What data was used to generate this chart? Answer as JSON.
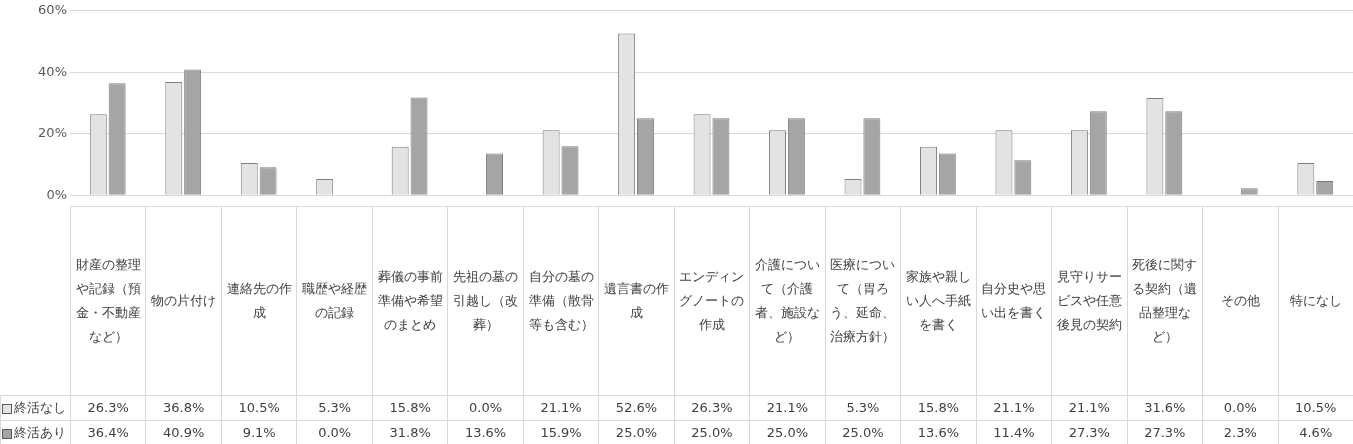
{
  "chart_data": {
    "type": "bar",
    "categories": [
      "財産の整理や記録（預金・不動産など）",
      "物の片付け",
      "連絡先の作成",
      "職歴や経歴の記録",
      "葬儀の事前準備や希望のまとめ",
      "先祖の墓の引越し（改葬）",
      "自分の墓の準備（散骨等も含む）",
      "遺言書の作成",
      "エンディングノートの作成",
      "介護について（介護者、施設など）",
      "医療について（胃ろう、延命、治療方針）",
      "家族や親しい人へ手紙を書く",
      "自分史や思い出を書く",
      "見守りサービスや任意後見の契約",
      "死後に関する契約（遺品整理など）",
      "その他",
      "特になし"
    ],
    "series": [
      {
        "name": "終活なし",
        "color": "#e3e3e3",
        "values": [
          26.3,
          36.8,
          10.5,
          5.3,
          15.8,
          0.0,
          21.1,
          52.6,
          26.3,
          21.1,
          5.3,
          15.8,
          21.1,
          21.1,
          31.6,
          0.0,
          10.5
        ],
        "value_labels": [
          "26.3%",
          "36.8%",
          "10.5%",
          "5.3%",
          "15.8%",
          "0.0%",
          "21.1%",
          "52.6%",
          "26.3%",
          "21.1%",
          "5.3%",
          "15.8%",
          "21.1%",
          "21.1%",
          "31.6%",
          "0.0%",
          "10.5%"
        ]
      },
      {
        "name": "終活あり",
        "color": "#a5a5a5",
        "values": [
          36.4,
          40.9,
          9.1,
          0.0,
          31.8,
          13.6,
          15.9,
          25.0,
          25.0,
          25.0,
          25.0,
          13.6,
          11.4,
          27.3,
          27.3,
          2.3,
          4.6
        ],
        "value_labels": [
          "36.4%",
          "40.9%",
          "9.1%",
          "0.0%",
          "31.8%",
          "13.6%",
          "15.9%",
          "25.0%",
          "25.0%",
          "25.0%",
          "25.0%",
          "13.6%",
          "11.4%",
          "27.3%",
          "27.3%",
          "2.3%",
          "4.6%"
        ]
      }
    ],
    "ylim": [
      0,
      60
    ],
    "yticks": [
      {
        "value": 0,
        "label": "0%"
      },
      {
        "value": 20,
        "label": "20%"
      },
      {
        "value": 40,
        "label": "40%"
      },
      {
        "value": 60,
        "label": "60%"
      }
    ],
    "grid": "y",
    "legend": "bottom left"
  }
}
